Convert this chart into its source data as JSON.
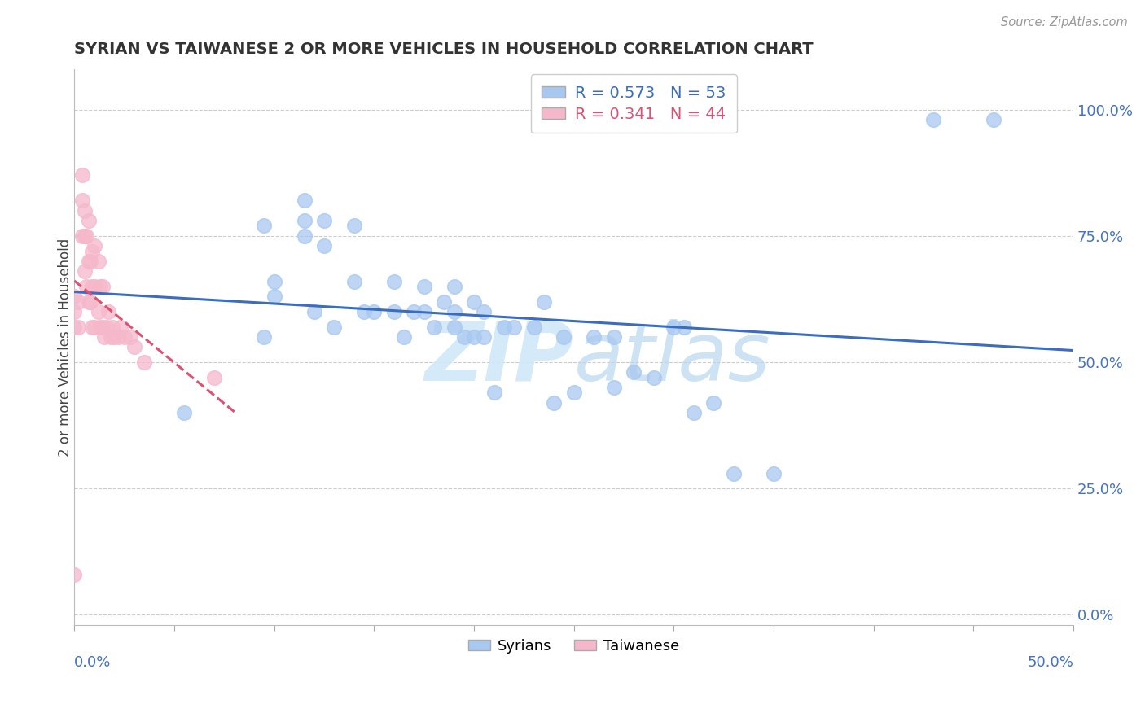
{
  "title": "SYRIAN VS TAIWANESE 2 OR MORE VEHICLES IN HOUSEHOLD CORRELATION CHART",
  "source": "Source: ZipAtlas.com",
  "ylabel": "2 or more Vehicles in Household",
  "ytick_vals": [
    0.0,
    0.25,
    0.5,
    0.75,
    1.0
  ],
  "ytick_labels": [
    "0.0%",
    "25.0%",
    "50.0%",
    "75.0%",
    "100.0%"
  ],
  "xlim": [
    0.0,
    0.5
  ],
  "ylim": [
    -0.02,
    1.08
  ],
  "syrians_R": 0.573,
  "syrians_N": 53,
  "taiwanese_R": 0.341,
  "taiwanese_N": 44,
  "syrians_color": "#a8c8f0",
  "taiwanese_color": "#f5b8cb",
  "syrians_line_color": "#3a6dbf",
  "taiwanese_line_color": "#e05070",
  "watermark_color": "#d0e8f8",
  "legend_syrians_label": "Syrians",
  "legend_taiwanese_label": "Taiwanese",
  "syrians_x": [
    0.055,
    0.095,
    0.095,
    0.1,
    0.1,
    0.115,
    0.115,
    0.115,
    0.12,
    0.125,
    0.125,
    0.13,
    0.14,
    0.14,
    0.145,
    0.15,
    0.16,
    0.16,
    0.165,
    0.17,
    0.175,
    0.175,
    0.18,
    0.185,
    0.19,
    0.19,
    0.19,
    0.195,
    0.2,
    0.2,
    0.205,
    0.205,
    0.21,
    0.215,
    0.22,
    0.23,
    0.235,
    0.24,
    0.245,
    0.25,
    0.26,
    0.27,
    0.27,
    0.28,
    0.29,
    0.3,
    0.305,
    0.31,
    0.32,
    0.33,
    0.35,
    0.43,
    0.46
  ],
  "syrians_y": [
    0.4,
    0.55,
    0.77,
    0.63,
    0.66,
    0.75,
    0.78,
    0.82,
    0.6,
    0.73,
    0.78,
    0.57,
    0.66,
    0.77,
    0.6,
    0.6,
    0.6,
    0.66,
    0.55,
    0.6,
    0.6,
    0.65,
    0.57,
    0.62,
    0.57,
    0.6,
    0.65,
    0.55,
    0.55,
    0.62,
    0.55,
    0.6,
    0.44,
    0.57,
    0.57,
    0.57,
    0.62,
    0.42,
    0.55,
    0.44,
    0.55,
    0.45,
    0.55,
    0.48,
    0.47,
    0.57,
    0.57,
    0.4,
    0.42,
    0.28,
    0.28,
    0.98,
    0.98
  ],
  "taiwanese_x": [
    0.0,
    0.0,
    0.0,
    0.002,
    0.002,
    0.004,
    0.004,
    0.004,
    0.005,
    0.005,
    0.005,
    0.006,
    0.006,
    0.007,
    0.007,
    0.007,
    0.008,
    0.008,
    0.009,
    0.009,
    0.009,
    0.01,
    0.01,
    0.01,
    0.012,
    0.012,
    0.013,
    0.013,
    0.014,
    0.014,
    0.015,
    0.016,
    0.017,
    0.018,
    0.019,
    0.02,
    0.022,
    0.023,
    0.025,
    0.028,
    0.03,
    0.035,
    0.07,
    0.0
  ],
  "taiwanese_y": [
    0.57,
    0.6,
    0.63,
    0.57,
    0.62,
    0.75,
    0.82,
    0.87,
    0.68,
    0.75,
    0.8,
    0.65,
    0.75,
    0.62,
    0.7,
    0.78,
    0.62,
    0.7,
    0.57,
    0.65,
    0.72,
    0.57,
    0.65,
    0.73,
    0.6,
    0.7,
    0.57,
    0.65,
    0.57,
    0.65,
    0.55,
    0.57,
    0.6,
    0.55,
    0.57,
    0.55,
    0.55,
    0.57,
    0.55,
    0.55,
    0.53,
    0.5,
    0.47,
    0.08
  ],
  "taiwanese_line_xmax": 0.08
}
